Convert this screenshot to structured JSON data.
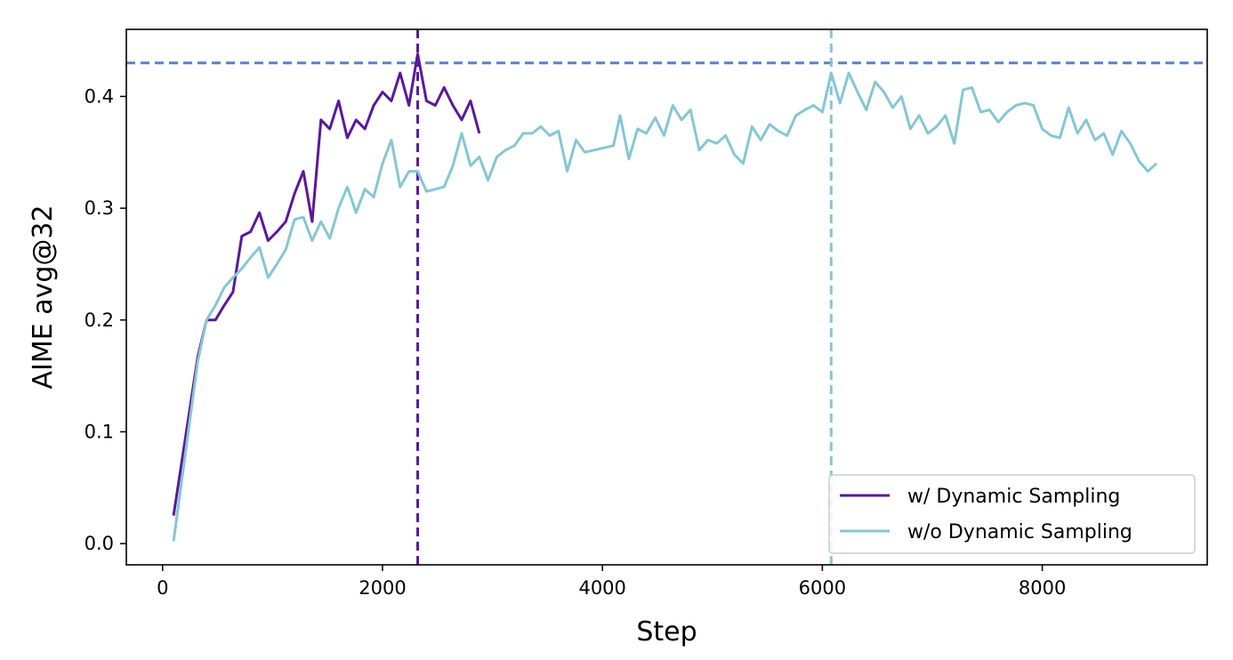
{
  "chart_data": {
    "type": "line",
    "xlabel": "Step",
    "ylabel": "AIME avg@32",
    "xlim": [
      -330,
      9500
    ],
    "ylim": [
      -0.019,
      0.46
    ],
    "xticks": [
      0,
      2000,
      4000,
      6000,
      8000
    ],
    "yticks": [
      0.0,
      0.1,
      0.2,
      0.3,
      0.4
    ],
    "xtick_labels": [
      "0",
      "2000",
      "4000",
      "6000",
      "8000"
    ],
    "ytick_labels": [
      "0.0",
      "0.1",
      "0.2",
      "0.3",
      "0.4"
    ],
    "grid": false,
    "legend_position": "lower-right",
    "series": [
      {
        "name": "w/ Dynamic Sampling",
        "color": "#5a189a",
        "points": [
          [
            100,
            0.025
          ],
          [
            320,
            0.167
          ],
          [
            400,
            0.2
          ],
          [
            480,
            0.2
          ],
          [
            560,
            0.213
          ],
          [
            640,
            0.225
          ],
          [
            720,
            0.275
          ],
          [
            800,
            0.279
          ],
          [
            880,
            0.296
          ],
          [
            960,
            0.271
          ],
          [
            1040,
            0.279
          ],
          [
            1120,
            0.288
          ],
          [
            1200,
            0.313
          ],
          [
            1280,
            0.333
          ],
          [
            1360,
            0.288
          ],
          [
            1440,
            0.379
          ],
          [
            1520,
            0.371
          ],
          [
            1600,
            0.396
          ],
          [
            1680,
            0.363
          ],
          [
            1760,
            0.379
          ],
          [
            1840,
            0.371
          ],
          [
            1920,
            0.392
          ],
          [
            2000,
            0.404
          ],
          [
            2080,
            0.396
          ],
          [
            2160,
            0.421
          ],
          [
            2240,
            0.392
          ],
          [
            2320,
            0.438
          ],
          [
            2400,
            0.396
          ],
          [
            2480,
            0.392
          ],
          [
            2560,
            0.408
          ],
          [
            2640,
            0.392
          ],
          [
            2720,
            0.379
          ],
          [
            2800,
            0.396
          ],
          [
            2880,
            0.367
          ]
        ]
      },
      {
        "name": "w/o Dynamic Sampling",
        "color": "#85c7d3",
        "points": [
          [
            100,
            0.002
          ],
          [
            320,
            0.163
          ],
          [
            400,
            0.2
          ],
          [
            480,
            0.213
          ],
          [
            560,
            0.229
          ],
          [
            640,
            0.238
          ],
          [
            720,
            0.246
          ],
          [
            800,
            0.256
          ],
          [
            880,
            0.265
          ],
          [
            960,
            0.238
          ],
          [
            1040,
            0.25
          ],
          [
            1120,
            0.263
          ],
          [
            1200,
            0.29
          ],
          [
            1280,
            0.292
          ],
          [
            1360,
            0.271
          ],
          [
            1440,
            0.288
          ],
          [
            1520,
            0.273
          ],
          [
            1600,
            0.3
          ],
          [
            1680,
            0.319
          ],
          [
            1760,
            0.296
          ],
          [
            1840,
            0.317
          ],
          [
            1920,
            0.31
          ],
          [
            2000,
            0.34
          ],
          [
            2080,
            0.361
          ],
          [
            2160,
            0.319
          ],
          [
            2240,
            0.333
          ],
          [
            2320,
            0.333
          ],
          [
            2400,
            0.315
          ],
          [
            2560,
            0.319
          ],
          [
            2640,
            0.338
          ],
          [
            2720,
            0.367
          ],
          [
            2800,
            0.338
          ],
          [
            2880,
            0.346
          ],
          [
            2960,
            0.325
          ],
          [
            3040,
            0.346
          ],
          [
            3120,
            0.352
          ],
          [
            3200,
            0.356
          ],
          [
            3280,
            0.367
          ],
          [
            3360,
            0.367
          ],
          [
            3440,
            0.373
          ],
          [
            3520,
            0.365
          ],
          [
            3600,
            0.369
          ],
          [
            3680,
            0.333
          ],
          [
            3760,
            0.361
          ],
          [
            3840,
            0.35
          ],
          [
            4100,
            0.356
          ],
          [
            4160,
            0.383
          ],
          [
            4240,
            0.344
          ],
          [
            4320,
            0.371
          ],
          [
            4400,
            0.367
          ],
          [
            4480,
            0.381
          ],
          [
            4560,
            0.365
          ],
          [
            4640,
            0.392
          ],
          [
            4720,
            0.379
          ],
          [
            4800,
            0.388
          ],
          [
            4880,
            0.352
          ],
          [
            4960,
            0.361
          ],
          [
            5040,
            0.358
          ],
          [
            5120,
            0.365
          ],
          [
            5200,
            0.348
          ],
          [
            5280,
            0.34
          ],
          [
            5360,
            0.373
          ],
          [
            5440,
            0.361
          ],
          [
            5520,
            0.375
          ],
          [
            5600,
            0.369
          ],
          [
            5680,
            0.365
          ],
          [
            5760,
            0.383
          ],
          [
            5840,
            0.388
          ],
          [
            5920,
            0.392
          ],
          [
            6000,
            0.386
          ],
          [
            6080,
            0.421
          ],
          [
            6160,
            0.394
          ],
          [
            6240,
            0.421
          ],
          [
            6320,
            0.404
          ],
          [
            6400,
            0.388
          ],
          [
            6480,
            0.413
          ],
          [
            6560,
            0.404
          ],
          [
            6640,
            0.39
          ],
          [
            6720,
            0.4
          ],
          [
            6800,
            0.371
          ],
          [
            6880,
            0.383
          ],
          [
            6960,
            0.367
          ],
          [
            7040,
            0.373
          ],
          [
            7120,
            0.383
          ],
          [
            7200,
            0.358
          ],
          [
            7280,
            0.406
          ],
          [
            7360,
            0.408
          ],
          [
            7440,
            0.386
          ],
          [
            7520,
            0.388
          ],
          [
            7600,
            0.377
          ],
          [
            7680,
            0.386
          ],
          [
            7760,
            0.392
          ],
          [
            7840,
            0.394
          ],
          [
            7920,
            0.392
          ],
          [
            8000,
            0.371
          ],
          [
            8080,
            0.365
          ],
          [
            8160,
            0.363
          ],
          [
            8240,
            0.39
          ],
          [
            8320,
            0.367
          ],
          [
            8400,
            0.379
          ],
          [
            8480,
            0.361
          ],
          [
            8560,
            0.367
          ],
          [
            8640,
            0.348
          ],
          [
            8720,
            0.369
          ],
          [
            8800,
            0.358
          ],
          [
            8880,
            0.342
          ],
          [
            8960,
            0.333
          ],
          [
            9040,
            0.34
          ]
        ]
      }
    ],
    "reference_lines": [
      {
        "orientation": "horizontal",
        "value": 0.43,
        "color": "#5b7fd0",
        "style": "dashed"
      },
      {
        "orientation": "vertical",
        "value": 2320,
        "color": "#5a189a",
        "style": "dashed"
      },
      {
        "orientation": "vertical",
        "value": 6080,
        "color": "#85c7d3",
        "style": "dashed"
      }
    ]
  }
}
